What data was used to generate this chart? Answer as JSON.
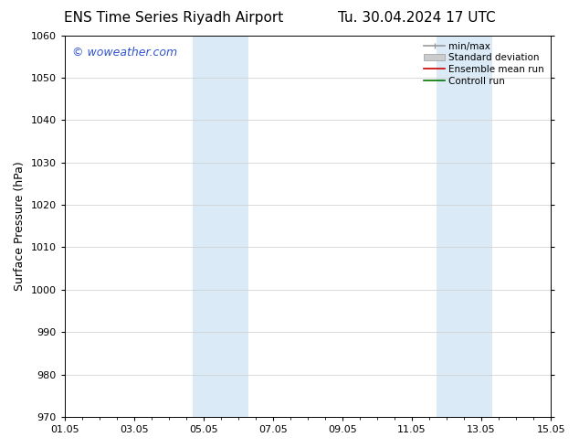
{
  "title_left": "ENS Time Series Riyadh Airport",
  "title_right": "Tu. 30.04.2024 17 UTC",
  "ylabel": "Surface Pressure (hPa)",
  "ylim": [
    970,
    1060
  ],
  "yticks": [
    970,
    980,
    990,
    1000,
    1010,
    1020,
    1030,
    1040,
    1050,
    1060
  ],
  "xtick_labels": [
    "01.05",
    "03.05",
    "05.05",
    "07.05",
    "09.05",
    "11.05",
    "13.05",
    "15.05"
  ],
  "xlim": [
    0,
    14
  ],
  "xtick_positions": [
    0,
    2,
    4,
    6,
    8,
    10,
    12,
    14
  ],
  "shaded_bands": [
    {
      "x_start": 3.7,
      "x_end": 5.3,
      "color": "#daeaf6"
    },
    {
      "x_start": 10.7,
      "x_end": 12.3,
      "color": "#daeaf6"
    }
  ],
  "background_color": "#ffffff",
  "watermark_text": "© woweather.com",
  "watermark_color": "#3355cc",
  "legend_items": [
    {
      "label": "min/max",
      "color": "#aaaaaa",
      "style": "errorbar"
    },
    {
      "label": "Standard deviation",
      "color": "#cccccc",
      "style": "band"
    },
    {
      "label": "Ensemble mean run",
      "color": "#cc0000",
      "style": "line"
    },
    {
      "label": "Controll run",
      "color": "#007700",
      "style": "line"
    }
  ],
  "grid_color": "#cccccc",
  "title_fontsize": 11,
  "axis_label_fontsize": 9,
  "tick_fontsize": 8,
  "legend_fontsize": 7.5
}
